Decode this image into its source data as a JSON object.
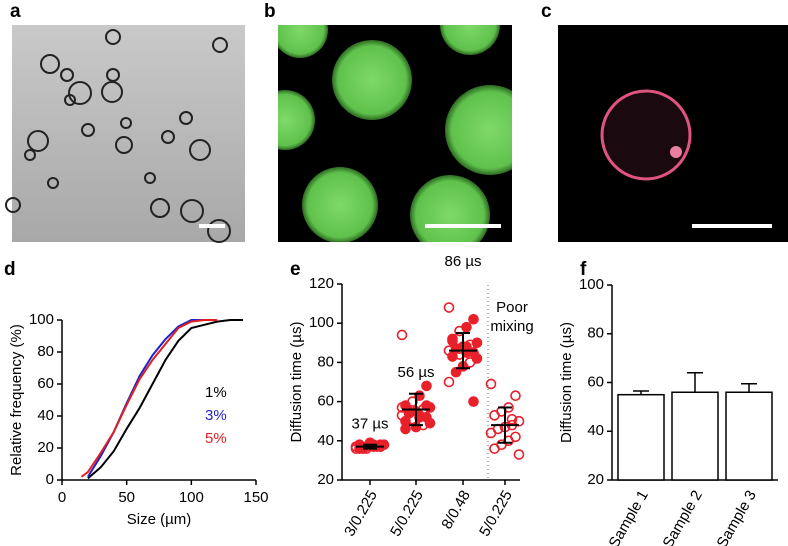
{
  "panel_labels": [
    "a",
    "b",
    "c",
    "d",
    "e",
    "f"
  ],
  "chart_data": [
    {
      "type": "line",
      "xlabel": "Size (µm)",
      "ylabel": "Relative frequency (%)",
      "x": [
        15,
        20,
        30,
        40,
        50,
        60,
        70,
        80,
        90,
        100,
        110,
        120,
        130,
        140
      ],
      "xlim": [
        0,
        150
      ],
      "xticks": [
        0,
        50,
        100,
        150
      ],
      "ylim": [
        0,
        100
      ],
      "yticks": [
        0,
        20,
        40,
        60,
        80,
        100
      ],
      "series": [
        {
          "name": "1%",
          "color": "#000000",
          "values": [
            null,
            1,
            8,
            18,
            32,
            45,
            60,
            75,
            87,
            95,
            97,
            99,
            100,
            100
          ]
        },
        {
          "name": "3%",
          "color": "#2222cc",
          "values": [
            null,
            2,
            15,
            30,
            48,
            65,
            78,
            88,
            96,
            100,
            100,
            null,
            null,
            null
          ]
        },
        {
          "name": "5%",
          "color": "#e02020",
          "values": [
            2,
            5,
            17,
            30,
            47,
            63,
            75,
            85,
            95,
            99,
            100,
            100,
            null,
            null
          ]
        }
      ]
    },
    {
      "type": "scatter",
      "ylabel": "Diffusion time (µs)",
      "categories": [
        "3/0.225",
        "5/0.225",
        "8/0.48",
        "5/0.225"
      ],
      "ylim": [
        20,
        120
      ],
      "yticks": [
        20,
        40,
        60,
        80,
        100,
        120
      ],
      "color": "#e8202a",
      "means": [
        37,
        56,
        86,
        48
      ],
      "sds": [
        1,
        8,
        9,
        9
      ],
      "points": [
        [
          36,
          37,
          38,
          37,
          36,
          38,
          37,
          39,
          36,
          37,
          38,
          37,
          36,
          38
        ],
        [
          94,
          68,
          63,
          60,
          58,
          57,
          56,
          55,
          54,
          53,
          52,
          52,
          51,
          50,
          49,
          48,
          47,
          55,
          57,
          58,
          53,
          51,
          46
        ],
        [
          108,
          102,
          98,
          96,
          92,
          90,
          89,
          88,
          87,
          86,
          85,
          85,
          84,
          83,
          82,
          80,
          78,
          75,
          70,
          60,
          88,
          87,
          91
        ],
        [
          69,
          63,
          57,
          55,
          53,
          50,
          48,
          47,
          46,
          44,
          42,
          40,
          38,
          36,
          33,
          51
        ]
      ],
      "annotations": [
        "37 µs",
        "56 µs",
        "86 µs"
      ],
      "annotation_lines": [
        "Poor",
        "mixing"
      ]
    },
    {
      "type": "bar",
      "ylabel": "Diffusion time (µs)",
      "categories": [
        "Sample 1",
        "Sample 2",
        "Sample 3"
      ],
      "values": [
        55,
        56,
        56
      ],
      "errors": [
        1.5,
        8,
        3.5
      ],
      "ylim": [
        20,
        100
      ],
      "yticks": [
        20,
        40,
        60,
        80,
        100
      ],
      "color": "#ffffff"
    }
  ]
}
